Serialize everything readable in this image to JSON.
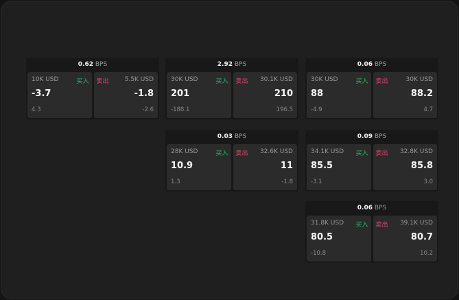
{
  "unit": "BPS",
  "buy_label": "买入",
  "sell_label": "卖出",
  "cards": [
    {
      "spread": "0.62",
      "buy": {
        "qty": "10K USD",
        "price": "-3.7",
        "change": "4.3"
      },
      "sell": {
        "qty": "5.5K USD",
        "price": "-1.8",
        "change": "-2.6"
      }
    },
    {
      "spread": "2.92",
      "buy": {
        "qty": "30K USD",
        "price": "201",
        "change": "-188.1"
      },
      "sell": {
        "qty": "30.1K USD",
        "price": "210",
        "change": "196.5"
      }
    },
    {
      "spread": "0.06",
      "buy": {
        "qty": "30K USD",
        "price": "88",
        "change": "-4.9"
      },
      "sell": {
        "qty": "30K USD",
        "price": "88.2",
        "change": "4.7"
      }
    },
    {
      "spread": "0.03",
      "buy": {
        "qty": "28K USD",
        "price": "10.9",
        "change": "1.3"
      },
      "sell": {
        "qty": "32.6K USD",
        "price": "11",
        "change": "-1.8"
      }
    },
    {
      "spread": "0.09",
      "buy": {
        "qty": "34.1K USD",
        "price": "85.5",
        "change": "-3.1"
      },
      "sell": {
        "qty": "32.8K USD",
        "price": "85.8",
        "change": "3.0"
      }
    },
    {
      "spread": "0.06",
      "buy": {
        "qty": "31.8K USD",
        "price": "80.5",
        "change": "-10.8"
      },
      "sell": {
        "qty": "39.1K USD",
        "price": "80.7",
        "change": "10.2"
      }
    }
  ]
}
